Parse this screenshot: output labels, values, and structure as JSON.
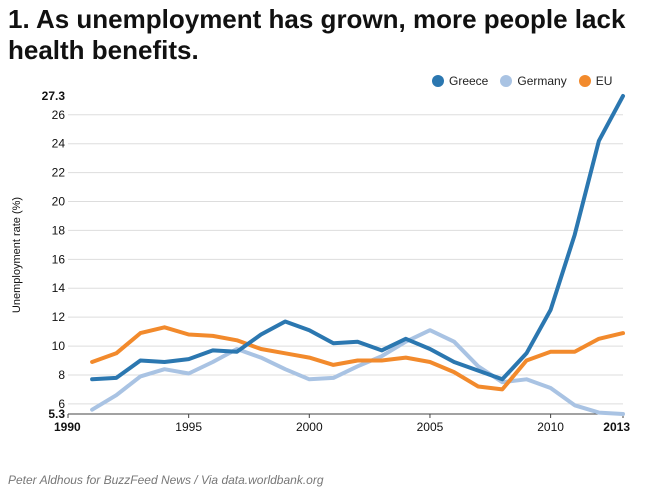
{
  "title": "1. As unemployment has grown, more people lack health benefits.",
  "source": "Peter Aldhous for BuzzFeed News / Via data.worldbank.org",
  "colors": {
    "Greece": "#2b77b0",
    "Germany": "#a9c3e3",
    "EU": "#f28a2c"
  },
  "chart_data": {
    "type": "line",
    "title": "1. As unemployment has grown, more people lack health benefits.",
    "xlabel": "",
    "ylabel": "Unemployment rate (%)",
    "xlim": [
      1990,
      2013
    ],
    "ylim": [
      5.3,
      27.3
    ],
    "x_ticks": [
      1990,
      1995,
      2000,
      2005,
      2010,
      2013
    ],
    "x_ticks_bold": [
      1990,
      2013
    ],
    "y_ticks": [
      6,
      8,
      10,
      12,
      14,
      16,
      18,
      20,
      22,
      24,
      26
    ],
    "y_ticks_bold": [
      5.3,
      27.3
    ],
    "legend_position": "top-right",
    "grid": true,
    "x": [
      1991,
      1992,
      1993,
      1994,
      1995,
      1996,
      1997,
      1998,
      1999,
      2000,
      2001,
      2002,
      2003,
      2004,
      2005,
      2006,
      2007,
      2008,
      2009,
      2010,
      2011,
      2012,
      2013
    ],
    "series": [
      {
        "name": "Greece",
        "values": [
          7.7,
          7.8,
          9.0,
          8.9,
          9.1,
          9.7,
          9.6,
          10.8,
          11.7,
          11.1,
          10.2,
          10.3,
          9.7,
          10.5,
          9.8,
          8.9,
          8.3,
          7.7,
          9.5,
          12.5,
          17.7,
          24.2,
          27.3
        ]
      },
      {
        "name": "Germany",
        "values": [
          5.6,
          6.6,
          7.9,
          8.4,
          8.1,
          8.9,
          9.8,
          9.2,
          8.4,
          7.7,
          7.8,
          8.6,
          9.3,
          10.3,
          11.1,
          10.3,
          8.6,
          7.5,
          7.7,
          7.1,
          5.9,
          5.4,
          5.3
        ]
      },
      {
        "name": "EU",
        "values": [
          8.9,
          9.5,
          10.9,
          11.3,
          10.8,
          10.7,
          10.4,
          9.8,
          9.5,
          9.2,
          8.7,
          9.0,
          9.0,
          9.2,
          8.9,
          8.2,
          7.2,
          7.0,
          9.0,
          9.6,
          9.6,
          10.5,
          10.9
        ]
      }
    ]
  }
}
